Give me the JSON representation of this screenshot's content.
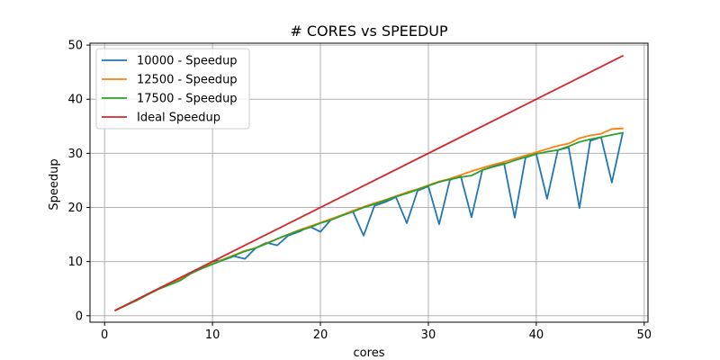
{
  "chart_data": {
    "type": "line",
    "title": "# CORES vs SPEEDUP",
    "xlabel": "cores",
    "ylabel": "Speedup",
    "xlim": [
      -1.35,
      50.35
    ],
    "ylim": [
      -1.2,
      50.35
    ],
    "xticks": [
      0,
      10,
      20,
      30,
      40,
      50
    ],
    "yticks": [
      0,
      10,
      20,
      30,
      40,
      50
    ],
    "grid": true,
    "legend_position": "upper-left",
    "series": [
      {
        "name": "10000 - Speedup",
        "color": "#1f77b4",
        "x": [
          1,
          2,
          3,
          4,
          5,
          6,
          7,
          8,
          9,
          10,
          11,
          12,
          13,
          14,
          15,
          16,
          17,
          18,
          19,
          20,
          21,
          22,
          23,
          24,
          25,
          26,
          27,
          28,
          29,
          30,
          31,
          32,
          33,
          34,
          35,
          36,
          37,
          38,
          39,
          40,
          41,
          42,
          43,
          44,
          45,
          46,
          47,
          48
        ],
        "y": [
          1,
          2,
          3,
          4,
          5,
          6,
          7,
          8,
          9,
          10,
          10.3,
          11,
          10.5,
          12.5,
          13.5,
          13,
          14.8,
          15.5,
          16.5,
          15.5,
          17.8,
          18.6,
          19.3,
          14.8,
          20.3,
          21,
          21.9,
          17.1,
          23.1,
          23.9,
          16.9,
          25.1,
          25.8,
          18.2,
          26.9,
          27.6,
          28.3,
          18.1,
          29.2,
          29.9,
          21.6,
          30.6,
          31.1,
          19.9,
          32.3,
          33,
          24.6,
          33.7
        ]
      },
      {
        "name": "12500 - Speedup",
        "color": "#ff7f0e",
        "x": [
          1,
          2,
          3,
          4,
          5,
          6,
          7,
          8,
          9,
          10,
          11,
          12,
          13,
          14,
          15,
          16,
          17,
          18,
          19,
          20,
          21,
          22,
          23,
          24,
          25,
          26,
          27,
          28,
          29,
          30,
          31,
          32,
          33,
          34,
          35,
          36,
          37,
          38,
          39,
          40,
          41,
          42,
          43,
          44,
          45,
          46,
          47,
          48
        ],
        "y": [
          1,
          1.95,
          2.9,
          3.95,
          5,
          6,
          6.8,
          7.9,
          8.8,
          9.6,
          10.4,
          11.2,
          12,
          12.5,
          13.4,
          14.2,
          15,
          15.8,
          16.5,
          17.2,
          17.9,
          18.6,
          19.4,
          20.1,
          20.8,
          21.4,
          22.1,
          22.8,
          23.4,
          24.1,
          24.8,
          25.3,
          26,
          26.7,
          27.3,
          27.9,
          28.4,
          29,
          29.6,
          30.2,
          30.8,
          31.4,
          31.8,
          32.8,
          33.3,
          33.6,
          34.5,
          34.6
        ]
      },
      {
        "name": "17500 - Speedup",
        "color": "#2ca02c",
        "x": [
          1,
          2,
          3,
          4,
          5,
          6,
          7,
          8,
          9,
          10,
          11,
          12,
          13,
          14,
          15,
          16,
          17,
          18,
          19,
          20,
          21,
          22,
          23,
          24,
          25,
          26,
          27,
          28,
          29,
          30,
          31,
          32,
          33,
          34,
          35,
          36,
          37,
          38,
          39,
          40,
          41,
          42,
          43,
          44,
          45,
          46,
          47,
          48
        ],
        "y": [
          1,
          1.9,
          2.85,
          3.9,
          4.9,
          5.7,
          6.5,
          7.8,
          8.7,
          9.5,
          10.3,
          11.1,
          11.9,
          12.5,
          13.3,
          14.2,
          15,
          15.7,
          16.3,
          17.1,
          17.7,
          18.5,
          19.2,
          20,
          20.6,
          21.3,
          22,
          22.6,
          23.3,
          24,
          24.7,
          25.2,
          25.6,
          25.9,
          26.9,
          27.5,
          28,
          28.7,
          29.3,
          29.9,
          30.3,
          30.6,
          31.3,
          32.1,
          32.6,
          33,
          33.4,
          33.8
        ]
      },
      {
        "name": "Ideal Speedup",
        "color": "#d62728",
        "x": [
          1,
          48
        ],
        "y": [
          1,
          48
        ]
      }
    ]
  }
}
